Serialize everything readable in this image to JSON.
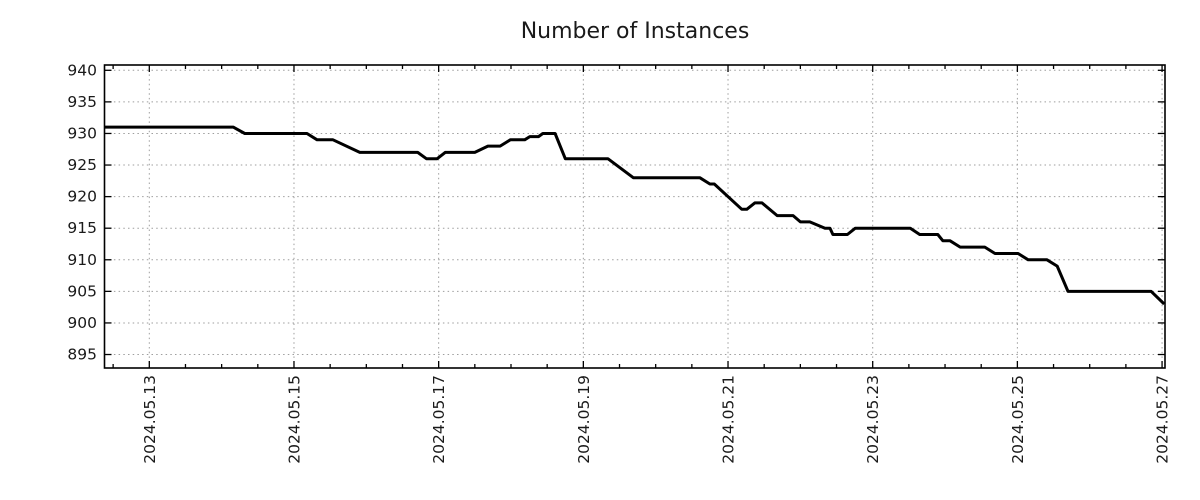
{
  "chart_data": {
    "type": "line",
    "title": "Number of Instances",
    "legend": "none",
    "grid": {
      "show": true,
      "style": "dotted"
    },
    "x_axis": {
      "epoch": "days since 2024-05-13 00:00",
      "tick_positions_days": [
        0,
        2,
        4,
        6,
        8,
        10,
        12,
        14
      ],
      "tick_labels": [
        "2024.05.13",
        "2024.05.15",
        "2024.05.17",
        "2024.05.19",
        "2024.05.21",
        "2024.05.23",
        "2024.05.25",
        "2024.05.27"
      ],
      "minor_tick_step_days": 0.5,
      "range_days": [
        -0.62,
        14.03
      ],
      "label_rotation_deg": 90
    },
    "y_axis": {
      "ticks": [
        895,
        900,
        905,
        910,
        915,
        920,
        925,
        930,
        935,
        940
      ],
      "range": [
        892.9,
        940.9
      ]
    },
    "series": [
      {
        "name": "instances",
        "color": "#000000",
        "points_day_value": [
          [
            -0.62,
            931
          ],
          [
            1.16,
            931
          ],
          [
            1.32,
            930
          ],
          [
            2.18,
            930
          ],
          [
            2.32,
            929
          ],
          [
            2.54,
            929
          ],
          [
            2.91,
            927
          ],
          [
            3.71,
            927
          ],
          [
            3.83,
            926
          ],
          [
            3.98,
            926
          ],
          [
            4.09,
            927
          ],
          [
            4.5,
            927
          ],
          [
            4.68,
            928
          ],
          [
            4.85,
            928
          ],
          [
            4.99,
            929
          ],
          [
            5.19,
            929
          ],
          [
            5.26,
            929.5
          ],
          [
            5.38,
            929.5
          ],
          [
            5.44,
            930
          ],
          [
            5.61,
            930
          ],
          [
            5.75,
            926
          ],
          [
            6.34,
            926
          ],
          [
            6.69,
            923
          ],
          [
            7.61,
            923
          ],
          [
            7.75,
            922
          ],
          [
            7.81,
            922
          ],
          [
            8.19,
            918
          ],
          [
            8.26,
            918
          ],
          [
            8.37,
            919
          ],
          [
            8.47,
            919
          ],
          [
            8.68,
            917
          ],
          [
            8.9,
            917
          ],
          [
            9.0,
            916
          ],
          [
            9.13,
            916
          ],
          [
            9.34,
            915
          ],
          [
            9.41,
            915
          ],
          [
            9.45,
            914
          ],
          [
            9.65,
            914
          ],
          [
            9.76,
            915
          ],
          [
            10.52,
            915
          ],
          [
            10.65,
            914
          ],
          [
            10.9,
            914
          ],
          [
            10.97,
            913
          ],
          [
            11.07,
            913
          ],
          [
            11.21,
            912
          ],
          [
            11.55,
            912
          ],
          [
            11.69,
            911
          ],
          [
            12.01,
            911
          ],
          [
            12.15,
            910
          ],
          [
            12.41,
            910
          ],
          [
            12.55,
            909
          ],
          [
            12.7,
            905
          ],
          [
            13.85,
            905
          ],
          [
            14.03,
            903
          ]
        ]
      }
    ]
  },
  "style": {
    "background": "#ffffff",
    "line_color": "#000000",
    "grid_color": "#9e9e9e",
    "frame_color": "#000000",
    "text_color": "#1a1a1a"
  }
}
